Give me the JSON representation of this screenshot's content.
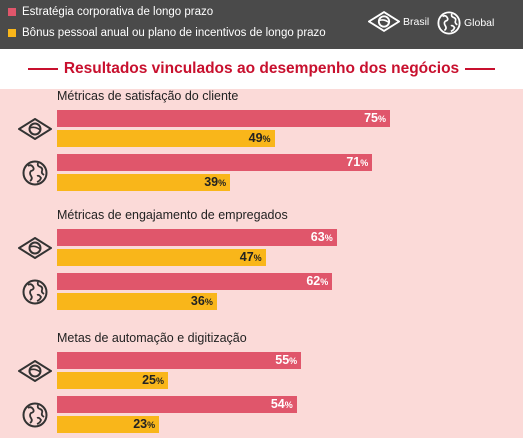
{
  "legend": {
    "strategy_label": "Estratégia corporativa de longo prazo",
    "bonus_label": "Bônus pessoal anual ou plano de incentivos de longo prazo",
    "strategy_color": "#e0566b",
    "bonus_color": "#f9b61a",
    "brasil_label": "Brasil",
    "global_label": "Global",
    "brasil_icon": "brazil-flag-icon",
    "global_icon": "globe-icon"
  },
  "heading": "Resultados vinculados ao desempenho dos negócios",
  "chart_data": {
    "type": "bar",
    "orientation": "horizontal",
    "title": "Resultados vinculados ao desempenho dos negócios",
    "unit": "%",
    "xlim": [
      0,
      100
    ],
    "series_names": [
      "Estratégia corporativa de longo prazo",
      "Bônus pessoal anual ou plano de incentivos de longo prazo"
    ],
    "categories": [
      {
        "label": "Métricas de satisfação do cliente",
        "groups": [
          {
            "region": "Brasil",
            "values": [
              75,
              49
            ]
          },
          {
            "region": "Global",
            "values": [
              71,
              39
            ]
          }
        ]
      },
      {
        "label": "Métricas de engajamento de empregados",
        "groups": [
          {
            "region": "Brasil",
            "values": [
              63,
              47
            ]
          },
          {
            "region": "Global",
            "values": [
              62,
              36
            ]
          }
        ]
      },
      {
        "label": "Metas de automação e digitização",
        "groups": [
          {
            "region": "Brasil",
            "values": [
              55,
              25
            ]
          },
          {
            "region": "Global",
            "values": [
              54,
              23
            ]
          }
        ]
      }
    ]
  }
}
